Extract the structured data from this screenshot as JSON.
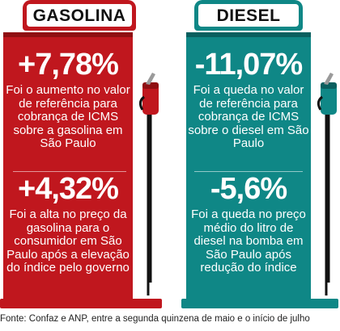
{
  "colors": {
    "gasolina_body": "#c0171e",
    "gasolina_dark": "#8f0f12",
    "diesel_body": "#0f8786",
    "diesel_dark": "#0a5f5f",
    "nozzle_hose": "#111111"
  },
  "gasolina": {
    "title": "GASOLINA",
    "stat1": {
      "value": "+7,78%",
      "text": "Foi o aumento no valor de referência para cobrança de ICMS sobre a gasolina em São Paulo"
    },
    "stat2": {
      "value": "+4,32%",
      "text": "Foi a alta no preço da gasolina para o consumidor em São Paulo após a elevação do índice pelo governo"
    }
  },
  "diesel": {
    "title": "DIESEL",
    "stat1": {
      "value": "-11,07%",
      "text": "Foi a queda no valor de referência para cobrança de ICMS sobre o diesel em São Paulo"
    },
    "stat2": {
      "value": "-5,6%",
      "text": "Foi a queda no preço médio do litro de diesel na bomba em São Paulo após redução do índice"
    }
  },
  "footer": "Fonte: Confaz e ANP, entre a segunda quinzena de maio e o início de julho",
  "icons": [
    "fuel-nozzle-icon",
    "fuel-nozzle-icon"
  ]
}
